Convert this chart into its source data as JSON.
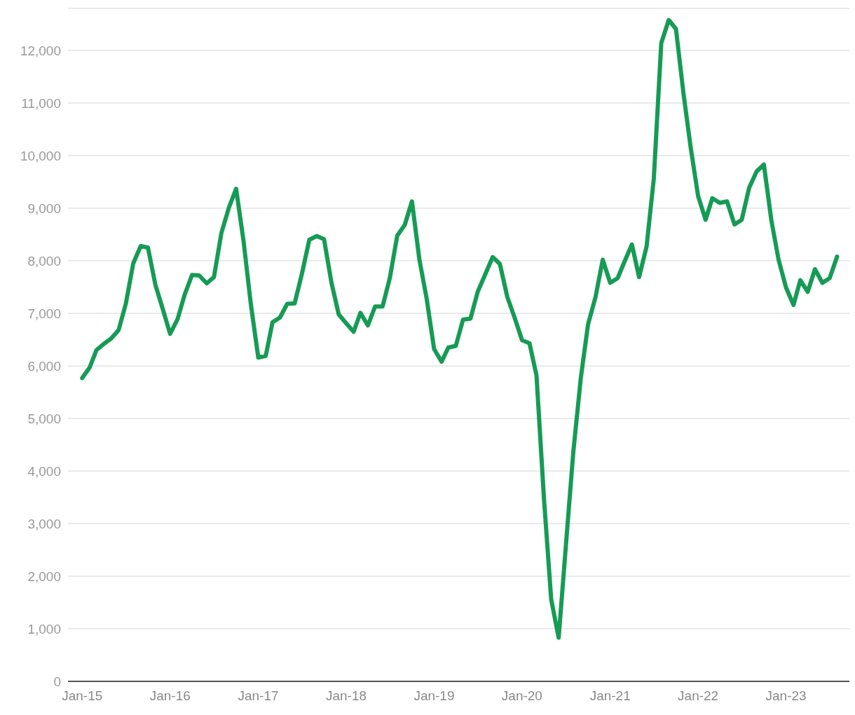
{
  "chart_data": {
    "type": "line",
    "x": [
      "2015-01",
      "2015-02",
      "2015-03",
      "2015-04",
      "2015-05",
      "2015-06",
      "2015-07",
      "2015-08",
      "2015-09",
      "2015-10",
      "2015-11",
      "2015-12",
      "2016-01",
      "2016-02",
      "2016-03",
      "2016-04",
      "2016-05",
      "2016-06",
      "2016-07",
      "2016-08",
      "2016-09",
      "2016-10",
      "2016-11",
      "2016-12",
      "2017-01",
      "2017-02",
      "2017-03",
      "2017-04",
      "2017-05",
      "2017-06",
      "2017-07",
      "2017-08",
      "2017-09",
      "2017-10",
      "2017-11",
      "2017-12",
      "2018-01",
      "2018-02",
      "2018-03",
      "2018-04",
      "2018-05",
      "2018-06",
      "2018-07",
      "2018-08",
      "2018-09",
      "2018-10",
      "2018-11",
      "2018-12",
      "2019-01",
      "2019-02",
      "2019-03",
      "2019-04",
      "2019-05",
      "2019-06",
      "2019-07",
      "2019-08",
      "2019-09",
      "2019-10",
      "2019-11",
      "2019-12",
      "2020-01",
      "2020-02",
      "2020-03",
      "2020-04",
      "2020-05",
      "2020-06",
      "2020-07",
      "2020-08",
      "2020-09",
      "2020-10",
      "2020-11",
      "2020-12",
      "2021-01",
      "2021-02",
      "2021-03",
      "2021-04",
      "2021-05",
      "2021-06",
      "2021-07",
      "2021-08",
      "2021-09",
      "2021-10",
      "2021-11",
      "2021-12",
      "2022-01",
      "2022-02",
      "2022-03",
      "2022-04",
      "2022-05",
      "2022-06",
      "2022-07",
      "2022-08",
      "2022-09",
      "2022-10",
      "2022-11",
      "2022-12",
      "2023-01",
      "2023-02",
      "2023-03",
      "2023-04",
      "2023-05",
      "2023-06",
      "2023-07",
      "2023-08"
    ],
    "series": [
      {
        "color": "#169b55",
        "values": [
          5770,
          5970,
          6300,
          6420,
          6520,
          6680,
          7180,
          7950,
          8280,
          8250,
          7540,
          7090,
          6610,
          6890,
          7350,
          7730,
          7720,
          7570,
          7690,
          8530,
          9010,
          9370,
          8370,
          7180,
          6160,
          6190,
          6830,
          6920,
          7180,
          7190,
          7750,
          8400,
          8470,
          8410,
          7580,
          6980,
          6810,
          6650,
          7010,
          6770,
          7130,
          7130,
          7670,
          8480,
          8680,
          9130,
          8020,
          7280,
          6320,
          6080,
          6350,
          6380,
          6880,
          6900,
          7410,
          7740,
          8070,
          7940,
          7310,
          6920,
          6490,
          6430,
          5820,
          3480,
          1560,
          830,
          2580,
          4370,
          5770,
          6790,
          7310,
          8020,
          7580,
          7670,
          7980,
          8310,
          7690,
          8270,
          9560,
          12140,
          12580,
          12410,
          11190,
          10160,
          9230,
          8780,
          9190,
          9100,
          9130,
          8690,
          8780,
          9390,
          9700,
          9830,
          8770,
          8020,
          7490,
          7160,
          7630,
          7410,
          7840,
          7580,
          7670,
          8080
        ]
      }
    ],
    "xlim": [
      "2014-11-03",
      "2023-09-21"
    ],
    "xticks": [
      {
        "value": "2015-01",
        "label": "Jan-15"
      },
      {
        "value": "2016-01",
        "label": "Jan-16"
      },
      {
        "value": "2017-01",
        "label": "Jan-17"
      },
      {
        "value": "2018-01",
        "label": "Jan-18"
      },
      {
        "value": "2019-01",
        "label": "Jan-19"
      },
      {
        "value": "2020-01",
        "label": "Jan-20"
      },
      {
        "value": "2021-01",
        "label": "Jan-21"
      },
      {
        "value": "2022-01",
        "label": "Jan-22"
      },
      {
        "value": "2023-01",
        "label": "Jan-23"
      }
    ],
    "ylim": [
      0,
      12800
    ],
    "yticks": [
      0,
      {
        "value": 1000,
        "label": "1,000"
      },
      {
        "value": 2000,
        "label": "2,000"
      },
      {
        "value": 3000,
        "label": "3,000"
      },
      {
        "value": 4000,
        "label": "4,000"
      },
      {
        "value": 5000,
        "label": "5,000"
      },
      {
        "value": 6000,
        "label": "6,000"
      },
      {
        "value": 7000,
        "label": "7,000"
      },
      {
        "value": 8000,
        "label": "8,000"
      },
      {
        "value": 9000,
        "label": "9,000"
      },
      {
        "value": 10000,
        "label": "10,000"
      },
      {
        "value": 11000,
        "label": "11,000"
      },
      {
        "value": 12000,
        "label": "12,000"
      }
    ],
    "grid": "y",
    "marker": "none",
    "line_style": "solid",
    "legend": false
  }
}
